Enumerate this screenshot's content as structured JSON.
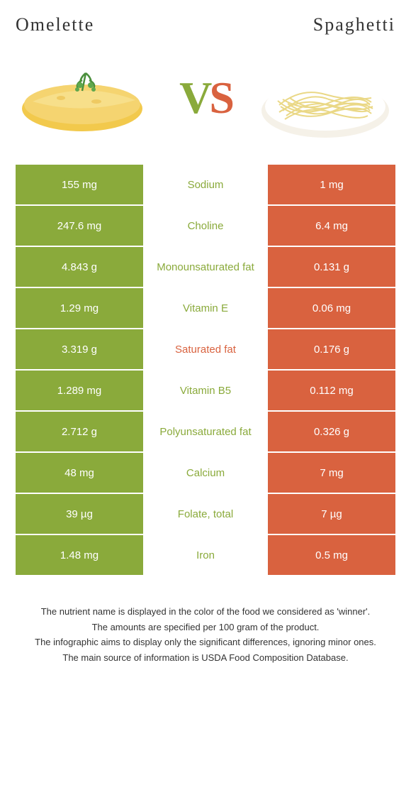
{
  "header": {
    "left_title": "Omelette",
    "right_title": "Spaghetti",
    "vs_v": "V",
    "vs_s": "S"
  },
  "colors": {
    "left": "#8aaa3b",
    "right": "#d9623f",
    "background": "#ffffff",
    "text": "#333333"
  },
  "table": {
    "rows": [
      {
        "left": "155 mg",
        "label": "Sodium",
        "right": "1 mg",
        "winner": "left"
      },
      {
        "left": "247.6 mg",
        "label": "Choline",
        "right": "6.4 mg",
        "winner": "left"
      },
      {
        "left": "4.843 g",
        "label": "Monounsaturated fat",
        "right": "0.131 g",
        "winner": "left"
      },
      {
        "left": "1.29 mg",
        "label": "Vitamin E",
        "right": "0.06 mg",
        "winner": "left"
      },
      {
        "left": "3.319 g",
        "label": "Saturated fat",
        "right": "0.176 g",
        "winner": "right"
      },
      {
        "left": "1.289 mg",
        "label": "Vitamin B5",
        "right": "0.112 mg",
        "winner": "left"
      },
      {
        "left": "2.712 g",
        "label": "Polyunsaturated fat",
        "right": "0.326 g",
        "winner": "left"
      },
      {
        "left": "48 mg",
        "label": "Calcium",
        "right": "7 mg",
        "winner": "left"
      },
      {
        "left": "39 µg",
        "label": "Folate, total",
        "right": "7 µg",
        "winner": "left"
      },
      {
        "left": "1.48 mg",
        "label": "Iron",
        "right": "0.5 mg",
        "winner": "left"
      }
    ]
  },
  "footer": {
    "line1": "The nutrient name is displayed in the color of the food we considered as 'winner'.",
    "line2": "The amounts are specified per 100 gram of the product.",
    "line3": "The infographic aims to display only the significant differences, ignoring minor ones.",
    "line4": "The main source of information is USDA Food Composition Database."
  }
}
